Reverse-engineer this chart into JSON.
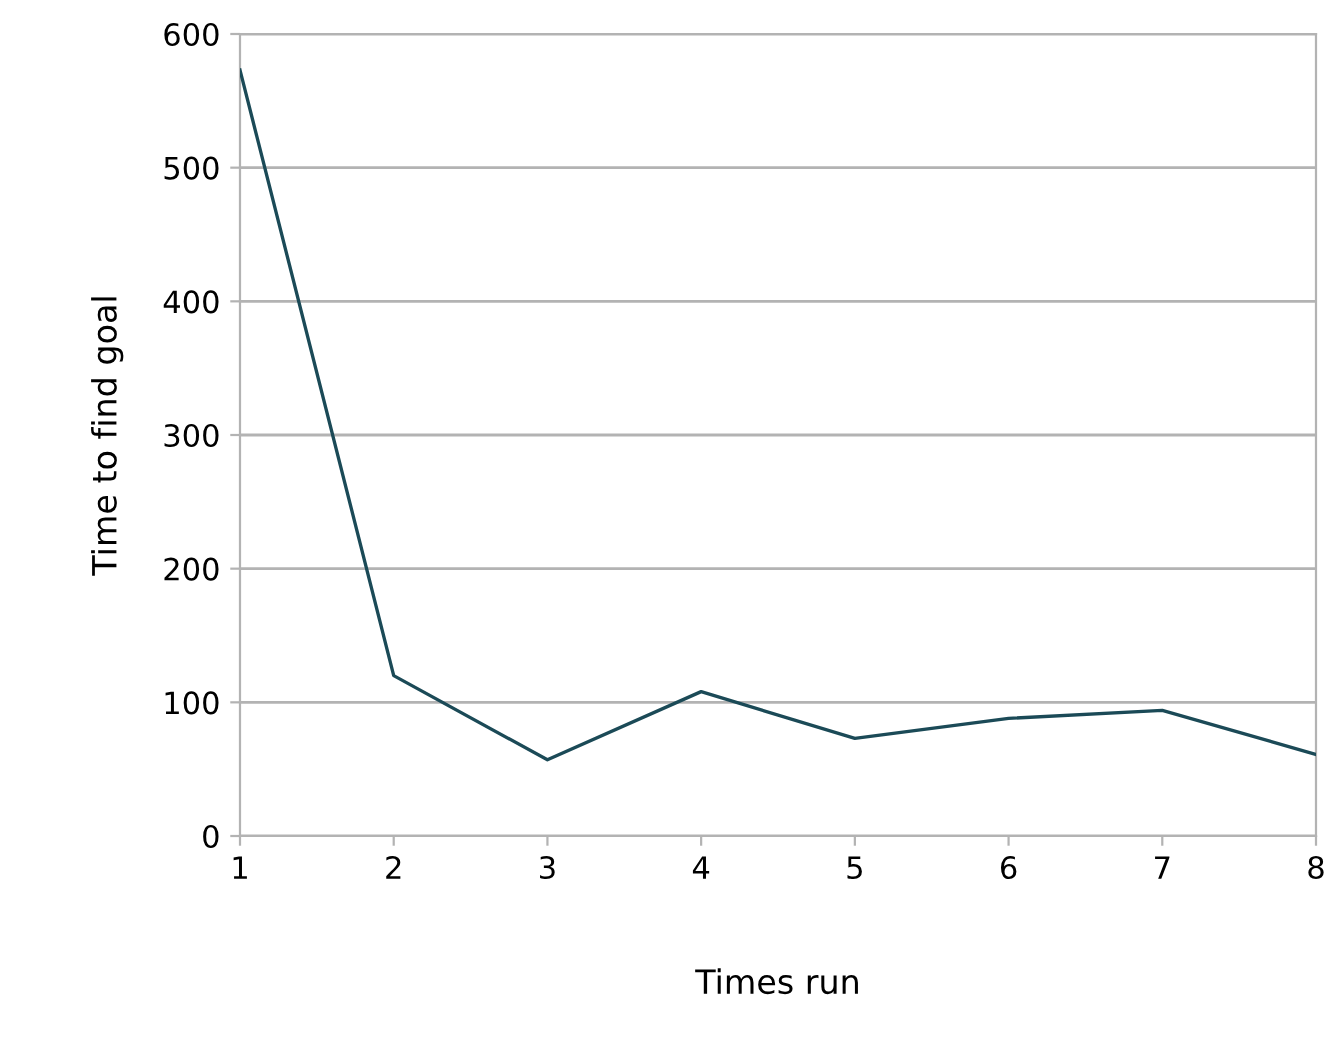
{
  "chart_data": {
    "type": "line",
    "xlabel": "Times run",
    "ylabel": "Time to find goal",
    "x": [
      1,
      2,
      3,
      4,
      5,
      6,
      7,
      8
    ],
    "series": [
      {
        "color": "#1b4a57",
        "values": [
          573,
          120,
          57,
          108,
          73,
          88,
          94,
          61
        ]
      }
    ],
    "xlim": [
      1,
      8
    ],
    "xticks": [
      1,
      2,
      3,
      4,
      5,
      6,
      7,
      8
    ],
    "ylim": [
      0,
      600
    ],
    "yticks": [
      0,
      100,
      200,
      300,
      400,
      500,
      600
    ],
    "grid": "y",
    "legend": false,
    "marker": "none",
    "line_style": "solid"
  }
}
